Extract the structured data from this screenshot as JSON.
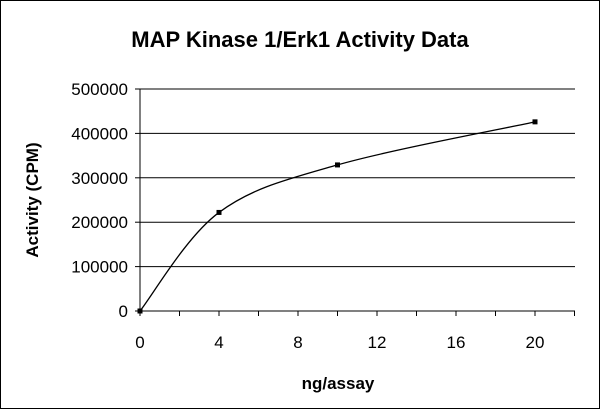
{
  "chart_data": {
    "type": "scatter",
    "title": "MAP Kinase 1/Erk1 Activity Data",
    "xlabel": "ng/assay",
    "ylabel": "Activity (CPM)",
    "xlim": [
      0,
      20
    ],
    "ylim": [
      0,
      500000
    ],
    "x_ticks": [
      "0",
      "4",
      "8",
      "12",
      "16",
      "20"
    ],
    "y_ticks": [
      "0",
      "100000",
      "200000",
      "300000",
      "400000",
      "500000"
    ],
    "grid": "horizontal",
    "legend": "none",
    "smoothed_line": true,
    "series": [
      {
        "x": [
          0,
          4,
          10,
          20
        ],
        "y": [
          0,
          222000,
          329000,
          426000
        ]
      }
    ],
    "colors": {
      "line": "#000000",
      "grid": "#000000",
      "background": "#ffffff"
    }
  }
}
